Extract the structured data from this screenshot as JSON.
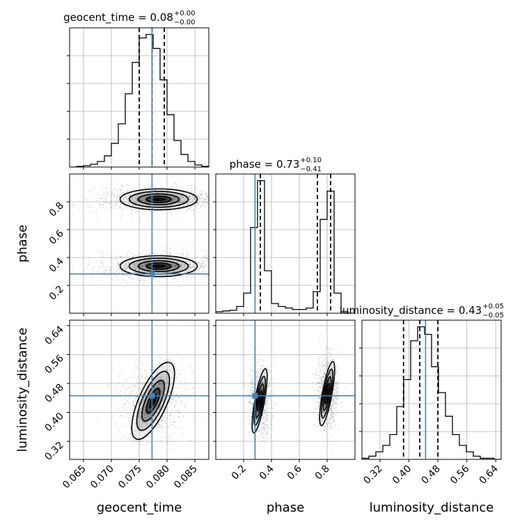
{
  "chart_data": {
    "type": "corner",
    "parameters": [
      "geocent_time",
      "phase",
      "luminosity_distance"
    ],
    "truths": {
      "geocent_time": 0.0773,
      "phase": 0.282,
      "luminosity_distance": 0.446
    },
    "titles": [
      {
        "param": "geocent_time",
        "median": "0.08",
        "plus": "+0.00",
        "minus": "−0.00"
      },
      {
        "param": "phase",
        "median": "0.73",
        "plus": "+0.10",
        "minus": "−0.41"
      },
      {
        "param": "luminosity_distance",
        "median": "0.43",
        "plus": "+0.05",
        "minus": "−0.05"
      }
    ],
    "axes": {
      "geocent_time": {
        "range": [
          0.0625,
          0.0875
        ],
        "ticks": [
          0.065,
          0.07,
          0.075,
          0.08,
          0.085
        ],
        "tick_labels": [
          "0.065",
          "0.070",
          "0.075",
          "0.080",
          "0.085"
        ]
      },
      "phase": {
        "range": [
          0.0,
          1.0
        ],
        "ticks": [
          0.2,
          0.4,
          0.6,
          0.8
        ],
        "tick_labels": [
          "0.2",
          "0.4",
          "0.6",
          "0.8"
        ]
      },
      "luminosity_distance": {
        "range": [
          0.27,
          0.655
        ],
        "ticks": [
          0.32,
          0.4,
          0.48,
          0.56,
          0.64
        ],
        "tick_labels": [
          "0.32",
          "0.40",
          "0.48",
          "0.56",
          "0.64"
        ]
      }
    },
    "histograms": {
      "geocent_time": {
        "edges": [
          0.0625,
          0.06375,
          0.065,
          0.06625,
          0.0675,
          0.06875,
          0.07,
          0.07125,
          0.0725,
          0.07375,
          0.075,
          0.07625,
          0.0775,
          0.07875,
          0.08,
          0.08125,
          0.0825,
          0.08375,
          0.085,
          0.08625,
          0.0875
        ],
        "counts": [
          0,
          1,
          2,
          4,
          8,
          16,
          34,
          62,
          105,
          150,
          185,
          190,
          170,
          125,
          75,
          38,
          18,
          8,
          3,
          1
        ],
        "quantiles": [
          0.075,
          0.0773,
          0.0795
        ]
      },
      "phase": {
        "edges": [
          0.0,
          0.05,
          0.1,
          0.15,
          0.2,
          0.25,
          0.3,
          0.35,
          0.4,
          0.45,
          0.5,
          0.55,
          0.6,
          0.65,
          0.7,
          0.75,
          0.8,
          0.85,
          0.9,
          0.95,
          1.0
        ],
        "counts": [
          2,
          3,
          4,
          9,
          27,
          115,
          178,
          57,
          13,
          9,
          7,
          5,
          5,
          7,
          29,
          126,
          164,
          27,
          2,
          0
        ],
        "quantiles": [
          0.32,
          0.73,
          0.825
        ]
      },
      "luminosity_distance": {
        "edges": [
          0.27,
          0.28925,
          0.3085,
          0.32775,
          0.347,
          0.36625,
          0.3855,
          0.40475,
          0.424,
          0.44325,
          0.4625,
          0.48175,
          0.501,
          0.52025,
          0.5395,
          0.55875,
          0.578,
          0.59725,
          0.6165,
          0.63575,
          0.655
        ],
        "counts": [
          1,
          3,
          7,
          13,
          23,
          49,
          74,
          110,
          123,
          116,
          86,
          62,
          40,
          23,
          13,
          7,
          3,
          1,
          1,
          0
        ],
        "quantiles": [
          0.385,
          0.43,
          0.48
        ]
      }
    },
    "contour_panels": [
      {
        "x": "geocent_time",
        "y": "phase",
        "modes": [
          {
            "cx": 0.0785,
            "cy": 0.818,
            "rx": 0.006,
            "ry": 0.065,
            "sx": 0.005,
            "sy": 0.04
          },
          {
            "cx": 0.0785,
            "cy": 0.338,
            "rx": 0.006,
            "ry": 0.065,
            "sx": 0.005,
            "sy": 0.04
          }
        ]
      },
      {
        "x": "geocent_time",
        "y": "luminosity_distance",
        "modes": [
          {
            "cx": 0.0775,
            "cy": 0.432,
            "rx": 0.0022,
            "ry": 0.1,
            "sx": 0.0025,
            "sy": 0.045,
            "rot": 0.42
          }
        ]
      },
      {
        "x": "phase",
        "y": "luminosity_distance",
        "modes": [
          {
            "cx": 0.315,
            "cy": 0.432,
            "rx": 0.03,
            "ry": 0.078,
            "sx": 0.035,
            "sy": 0.045,
            "rot": 0.18
          },
          {
            "cx": 0.8,
            "cy": 0.452,
            "rx": 0.03,
            "ry": 0.078,
            "sx": 0.035,
            "sy": 0.045,
            "rot": 0.18
          }
        ]
      }
    ],
    "contour_levels": [
      0.65,
      1.1,
      1.6,
      2.1
    ],
    "colors": {
      "truth": "#4682b4",
      "contour": "#000000",
      "grid": "#b0b0b0",
      "scatter": "#000000"
    }
  }
}
